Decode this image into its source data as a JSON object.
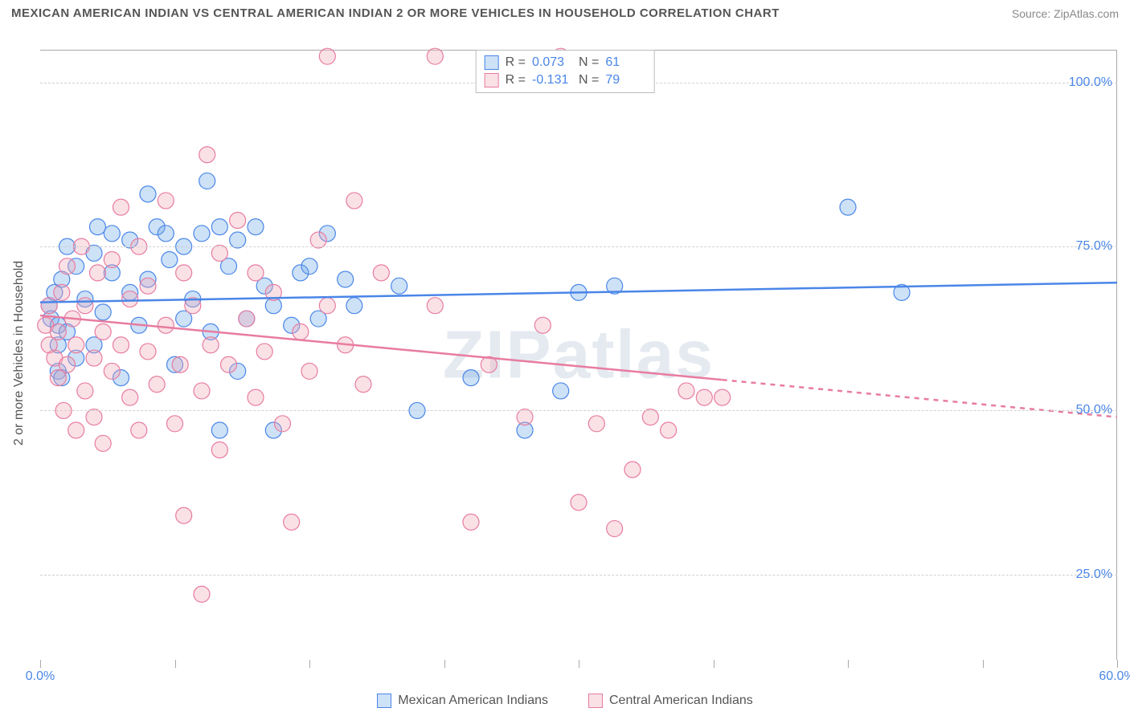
{
  "title": "MEXICAN AMERICAN INDIAN VS CENTRAL AMERICAN INDIAN 2 OR MORE VEHICLES IN HOUSEHOLD CORRELATION CHART",
  "source": "Source: ZipAtlas.com",
  "watermark": "ZIPatlas",
  "y_axis_label": "2 or more Vehicles in Household",
  "chart": {
    "type": "scatter",
    "xlim": [
      0,
      60
    ],
    "ylim": [
      12,
      105
    ],
    "x_ticks": [
      0,
      60
    ],
    "x_tick_labels": [
      "0.0%",
      "60.0%"
    ],
    "x_minor_ticks": [
      7.5,
      15,
      22.5,
      30,
      37.5,
      45,
      52.5
    ],
    "y_ticks": [
      25,
      50,
      75,
      100
    ],
    "y_tick_labels": [
      "25.0%",
      "50.0%",
      "75.0%",
      "100.0%"
    ],
    "background": "#ffffff",
    "grid_color": "#d0d0d0",
    "marker_radius": 10,
    "marker_opacity": 0.45,
    "line_width": 2.5,
    "title_fontsize": 15,
    "axis_fontsize": 16
  },
  "series": [
    {
      "name": "Mexican American Indians",
      "color": "#6fa8e8",
      "fill": "rgba(111,168,232,0.35)",
      "stroke": "#4a86e8",
      "R": "0.073",
      "N": "61",
      "trend": {
        "y_at_xmin": 66.5,
        "y_at_xmax": 69.5,
        "dash_from_x": null
      },
      "points": [
        [
          0.5,
          66
        ],
        [
          0.6,
          64
        ],
        [
          0.8,
          68
        ],
        [
          1,
          63
        ],
        [
          1,
          60
        ],
        [
          1.2,
          70
        ],
        [
          1.5,
          62
        ],
        [
          1.5,
          75
        ],
        [
          2,
          58
        ],
        [
          2,
          72
        ],
        [
          1,
          56
        ],
        [
          2.5,
          67
        ],
        [
          3,
          74
        ],
        [
          3,
          60
        ],
        [
          3.2,
          78
        ],
        [
          3.5,
          65
        ],
        [
          4,
          77
        ],
        [
          4,
          71
        ],
        [
          4.5,
          55
        ],
        [
          5,
          76
        ],
        [
          5,
          68
        ],
        [
          5.5,
          63
        ],
        [
          6,
          83
        ],
        [
          6,
          70
        ],
        [
          6.5,
          78
        ],
        [
          7,
          77
        ],
        [
          7.2,
          73
        ],
        [
          7.5,
          57
        ],
        [
          8,
          75
        ],
        [
          8,
          64
        ],
        [
          8.5,
          67
        ],
        [
          9,
          77
        ],
        [
          9.3,
          85
        ],
        [
          9.5,
          62
        ],
        [
          10,
          78
        ],
        [
          10,
          47
        ],
        [
          10.5,
          72
        ],
        [
          11,
          56
        ],
        [
          11,
          76
        ],
        [
          11.5,
          64
        ],
        [
          12,
          78
        ],
        [
          12.5,
          69
        ],
        [
          13,
          66
        ],
        [
          13,
          47
        ],
        [
          14,
          63
        ],
        [
          14.5,
          71
        ],
        [
          15,
          72
        ],
        [
          15.5,
          64
        ],
        [
          16,
          77
        ],
        [
          17,
          70
        ],
        [
          17.5,
          66
        ],
        [
          20,
          69
        ],
        [
          21,
          50
        ],
        [
          24,
          55
        ],
        [
          27,
          47
        ],
        [
          29,
          53
        ],
        [
          30,
          68
        ],
        [
          32,
          69
        ],
        [
          45,
          81
        ],
        [
          48,
          68
        ],
        [
          1.2,
          55
        ]
      ]
    },
    {
      "name": "Central American Indians",
      "color": "#f0a8b8",
      "fill": "rgba(240,168,184,0.35)",
      "stroke": "#e87ca0",
      "R": "-0.131",
      "N": "79",
      "trend": {
        "y_at_xmin": 64.5,
        "y_at_xmax": 49.0,
        "dash_from_x": 38
      },
      "points": [
        [
          0.3,
          63
        ],
        [
          0.5,
          60
        ],
        [
          0.5,
          66
        ],
        [
          0.8,
          58
        ],
        [
          1,
          55
        ],
        [
          1,
          62
        ],
        [
          1.2,
          68
        ],
        [
          1.3,
          50
        ],
        [
          1.5,
          72
        ],
        [
          1.5,
          57
        ],
        [
          1.8,
          64
        ],
        [
          2,
          47
        ],
        [
          2,
          60
        ],
        [
          2.3,
          75
        ],
        [
          2.5,
          53
        ],
        [
          2.5,
          66
        ],
        [
          3,
          58
        ],
        [
          3,
          49
        ],
        [
          3.2,
          71
        ],
        [
          3.5,
          62
        ],
        [
          3.5,
          45
        ],
        [
          4,
          56
        ],
        [
          4,
          73
        ],
        [
          4.5,
          60
        ],
        [
          4.5,
          81
        ],
        [
          5,
          52
        ],
        [
          5,
          67
        ],
        [
          5.5,
          47
        ],
        [
          5.5,
          75
        ],
        [
          6,
          59
        ],
        [
          6,
          69
        ],
        [
          6.5,
          54
        ],
        [
          7,
          63
        ],
        [
          7,
          82
        ],
        [
          7.5,
          48
        ],
        [
          7.8,
          57
        ],
        [
          8,
          71
        ],
        [
          8,
          34
        ],
        [
          8.5,
          66
        ],
        [
          9,
          53
        ],
        [
          9,
          22
        ],
        [
          9.3,
          89
        ],
        [
          9.5,
          60
        ],
        [
          10,
          74
        ],
        [
          10,
          44
        ],
        [
          10.5,
          57
        ],
        [
          11,
          79
        ],
        [
          11.5,
          64
        ],
        [
          12,
          52
        ],
        [
          12,
          71
        ],
        [
          12.5,
          59
        ],
        [
          13,
          68
        ],
        [
          13.5,
          48
        ],
        [
          14,
          33
        ],
        [
          14.5,
          62
        ],
        [
          15,
          56
        ],
        [
          15.5,
          76
        ],
        [
          16,
          104
        ],
        [
          16,
          66
        ],
        [
          17,
          60
        ],
        [
          17.5,
          82
        ],
        [
          18,
          54
        ],
        [
          19,
          71
        ],
        [
          22,
          104
        ],
        [
          22,
          66
        ],
        [
          24,
          33
        ],
        [
          25,
          57
        ],
        [
          27,
          49
        ],
        [
          28,
          63
        ],
        [
          29,
          104
        ],
        [
          30,
          36
        ],
        [
          31,
          48
        ],
        [
          32,
          32
        ],
        [
          33,
          41
        ],
        [
          34,
          49
        ],
        [
          35,
          47
        ],
        [
          36,
          53
        ],
        [
          37,
          52
        ],
        [
          38,
          52
        ]
      ]
    }
  ],
  "legend": {
    "items": [
      "Mexican American Indians",
      "Central American Indians"
    ]
  },
  "stats_labels": {
    "R": "R =",
    "N": "N ="
  }
}
